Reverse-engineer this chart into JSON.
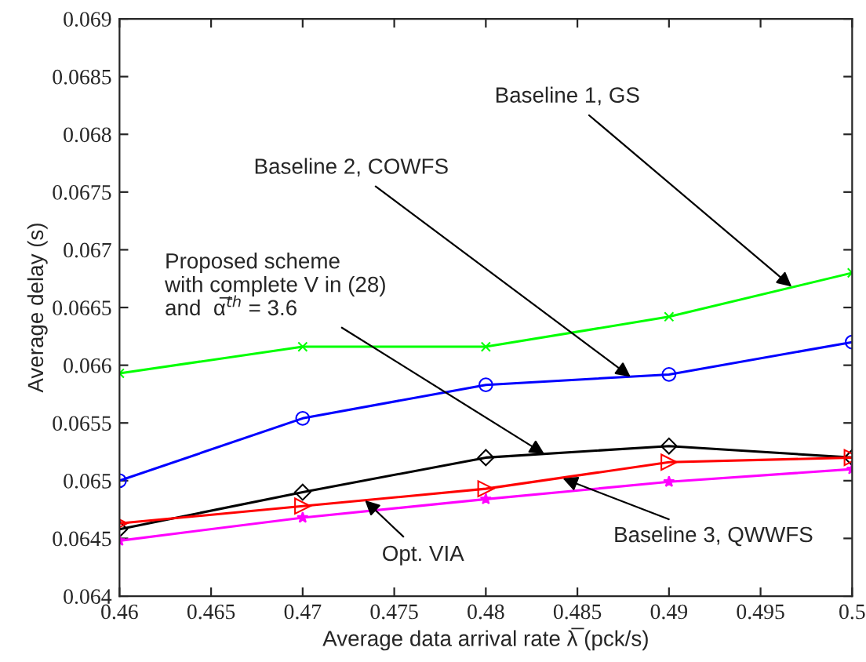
{
  "chart_data": {
    "type": "line",
    "xlabel": "Average data arrival rate λ̅ (pck/s)",
    "ylabel": "Average delay (s)",
    "x": [
      0.46,
      0.47,
      0.48,
      0.49,
      0.5
    ],
    "series": [
      {
        "color": "#00ff00",
        "marker": "cross",
        "values": [
          0.06593,
          0.06616,
          0.06616,
          0.06642,
          0.0668
        ]
      },
      {
        "color": "#0000ff",
        "marker": "circle",
        "values": [
          0.065,
          0.06554,
          0.06583,
          0.06592,
          0.0662
        ]
      },
      {
        "color": "#000000",
        "marker": "diamond",
        "values": [
          0.06458,
          0.0649,
          0.0652,
          0.0653,
          0.0652
        ]
      },
      {
        "color": "#ff0000",
        "marker": "triangle",
        "values": [
          0.06463,
          0.06478,
          0.06493,
          0.06516,
          0.0652
        ]
      },
      {
        "color": "#ff00ff",
        "marker": "star",
        "values": [
          0.06448,
          0.06468,
          0.06484,
          0.06499,
          0.0651
        ]
      }
    ],
    "annotations": [
      {
        "text": "Baseline 1, GS",
        "x": 0.4967,
        "y": 0.06668
      },
      {
        "text": "Baseline 2, COWFS",
        "x": 0.4879,
        "y": 0.0659
      },
      {
        "text": "Proposed scheme\nwith complete V in (28)\nand  α̅$^{th}$ = 3.6",
        "x": 0.4832,
        "y": 0.06523
      },
      {
        "text": "Opt. VIA",
        "x": 0.4734,
        "y": 0.06483
      },
      {
        "text": "Baseline 3, QWWFS",
        "x": 0.4842,
        "y": 0.06502
      }
    ],
    "xlim": [
      0.46,
      0.5
    ],
    "xticks": [
      0.46,
      0.465,
      0.47,
      0.475,
      0.48,
      0.485,
      0.49,
      0.495,
      0.5
    ],
    "ylim": [
      0.064,
      0.069
    ],
    "yticks": [
      0.064,
      0.0645,
      0.065,
      0.0655,
      0.066,
      0.0665,
      0.067,
      0.0675,
      0.068,
      0.0685,
      0.069
    ],
    "grid": false,
    "line_style": "solid"
  }
}
